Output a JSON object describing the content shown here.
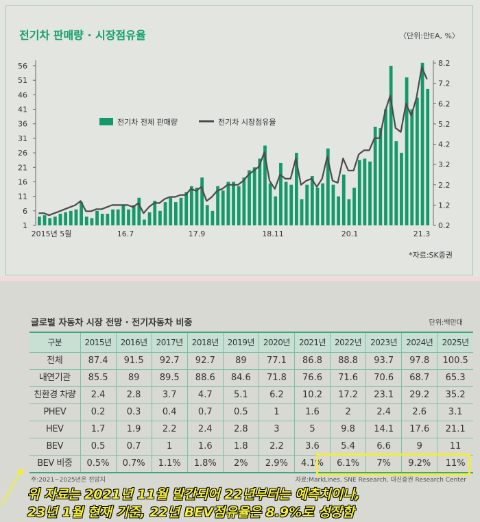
{
  "chart_section": {
    "title": "전기차 판매량 · 시장점유율",
    "unit": "〈단위:만EA, %〉",
    "source": "*자료:SK증권"
  },
  "chart_data": {
    "type": "bar+line",
    "title": "전기차 판매량 · 시장점유율",
    "x_tick_labels": [
      "2015년 5월",
      "16.7",
      "17.9",
      "18.11",
      "20.1",
      "21.3"
    ],
    "left_axis": {
      "ticks": [
        1,
        6,
        11,
        16,
        21,
        26,
        31,
        36,
        41,
        46,
        51,
        56
      ],
      "ylim": [
        1,
        56
      ]
    },
    "right_axis": {
      "ticks": [
        "0.2",
        "1.2",
        "2.2",
        "3.2",
        "4.2",
        "5.2",
        "6.2",
        "7.2",
        "8.2"
      ],
      "ylim": [
        0.2,
        8.2
      ]
    },
    "legend": {
      "position": "upper-left",
      "entries": [
        "전기차 전체 판매량",
        "전기차 시장점유율"
      ]
    },
    "colors": {
      "bar": "#14996a",
      "line": "#4a4a4a"
    },
    "series": [
      {
        "name": "전기차 전체 판매량",
        "type": "bar",
        "axis": "left",
        "values": [
          4,
          4.5,
          3.5,
          4,
          5,
          5.5,
          6,
          6.5,
          9,
          4,
          3.5,
          6,
          5,
          5,
          6.5,
          6.5,
          8,
          6.5,
          8,
          10.5,
          3,
          5.5,
          9.5,
          6,
          9,
          10.5,
          9,
          10.5,
          12.5,
          14.5,
          14,
          17.5,
          8,
          6,
          14.5,
          13,
          16,
          16,
          14.5,
          17.5,
          20,
          21,
          24,
          28.5,
          15.5,
          11,
          22.5,
          16,
          15,
          26,
          10,
          15,
          18,
          14,
          15.5,
          27.5,
          15,
          11,
          18.5,
          10,
          14,
          23.5,
          24,
          23,
          35,
          34.5,
          41,
          56,
          30,
          26,
          52,
          41,
          45,
          57,
          48
        ]
      },
      {
        "name": "전기차 시장점유율",
        "type": "line",
        "axis": "right",
        "values": [
          0.8,
          0.8,
          0.7,
          0.8,
          0.9,
          1.0,
          1.1,
          1.2,
          1.4,
          0.9,
          0.9,
          1.0,
          1.0,
          1.1,
          1.2,
          1.2,
          1.2,
          1.2,
          1.1,
          1.3,
          0.8,
          1.1,
          1.3,
          1.3,
          1.5,
          1.6,
          1.6,
          1.7,
          1.7,
          2.0,
          1.9,
          2.1,
          1.4,
          1.6,
          1.9,
          2.0,
          2.2,
          2.2,
          2.2,
          2.4,
          2.7,
          2.9,
          3.1,
          3.8,
          2.4,
          2.0,
          2.7,
          2.5,
          2.5,
          3.5,
          2.2,
          2.4,
          2.5,
          2.1,
          2.5,
          3.6,
          2.4,
          2.3,
          3.5,
          2.9,
          2.9,
          3.7,
          3.9,
          3.9,
          4.5,
          4.5,
          5.8,
          6.6,
          5.0,
          4.8,
          6.2,
          5.6,
          6.5,
          8.0,
          7.4
        ]
      }
    ]
  },
  "table": {
    "title": "글로벌 자동차 시장 전망 · 전기자동차 비중",
    "unit": "단위:백만대",
    "headers": [
      "구분",
      "2015년",
      "2016년",
      "2017년",
      "2018년",
      "2019년",
      "2020년",
      "2021년",
      "2022년",
      "2023년",
      "2024년",
      "2025년"
    ],
    "rows": [
      [
        "전체",
        "87.4",
        "91.5",
        "92.7",
        "92.7",
        "89",
        "77.1",
        "86.8",
        "88.8",
        "93.7",
        "97.8",
        "100.5"
      ],
      [
        "내연기관",
        "85.5",
        "89",
        "89.5",
        "88.6",
        "84.6",
        "71.8",
        "76.6",
        "71.6",
        "70.6",
        "68.7",
        "65.3"
      ],
      [
        "친환경 차량",
        "2.4",
        "2.8",
        "3.7",
        "4.7",
        "5.1",
        "6.2",
        "10.2",
        "17.2",
        "23.1",
        "29.2",
        "35.2"
      ],
      [
        "PHEV",
        "0.2",
        "0.3",
        "0.4",
        "0.7",
        "0.5",
        "1",
        "1.6",
        "2",
        "2.4",
        "2.6",
        "3.1"
      ],
      [
        "HEV",
        "1.7",
        "1.9",
        "2.2",
        "2.4",
        "2.8",
        "3",
        "5",
        "9.8",
        "14.1",
        "17.6",
        "21.1"
      ],
      [
        "BEV",
        "0.5",
        "0.7",
        "1",
        "1.6",
        "1.8",
        "2.2",
        "3.6",
        "5.4",
        "6.6",
        "9",
        "11"
      ],
      [
        "BEV 비중",
        "0.5%",
        "0.7%",
        "1.1%",
        "1.8%",
        "2%",
        "2.9%",
        "4.1%",
        "6.1%",
        "7%",
        "9.2%",
        "11%"
      ]
    ],
    "note": "주:2021~2025년은 전망치",
    "source": "자료:MarkLines, SNE Research, 대신증권 Research Center"
  },
  "annotation": {
    "line1": "위 자료는 2021년 11월 발간되어  22년부터는 예측치이나,",
    "line2": "23년 1월 현재 기준, 22년 BEV점유율은 8.9%로 성장함",
    "highlight_color": "#f2ee37"
  }
}
